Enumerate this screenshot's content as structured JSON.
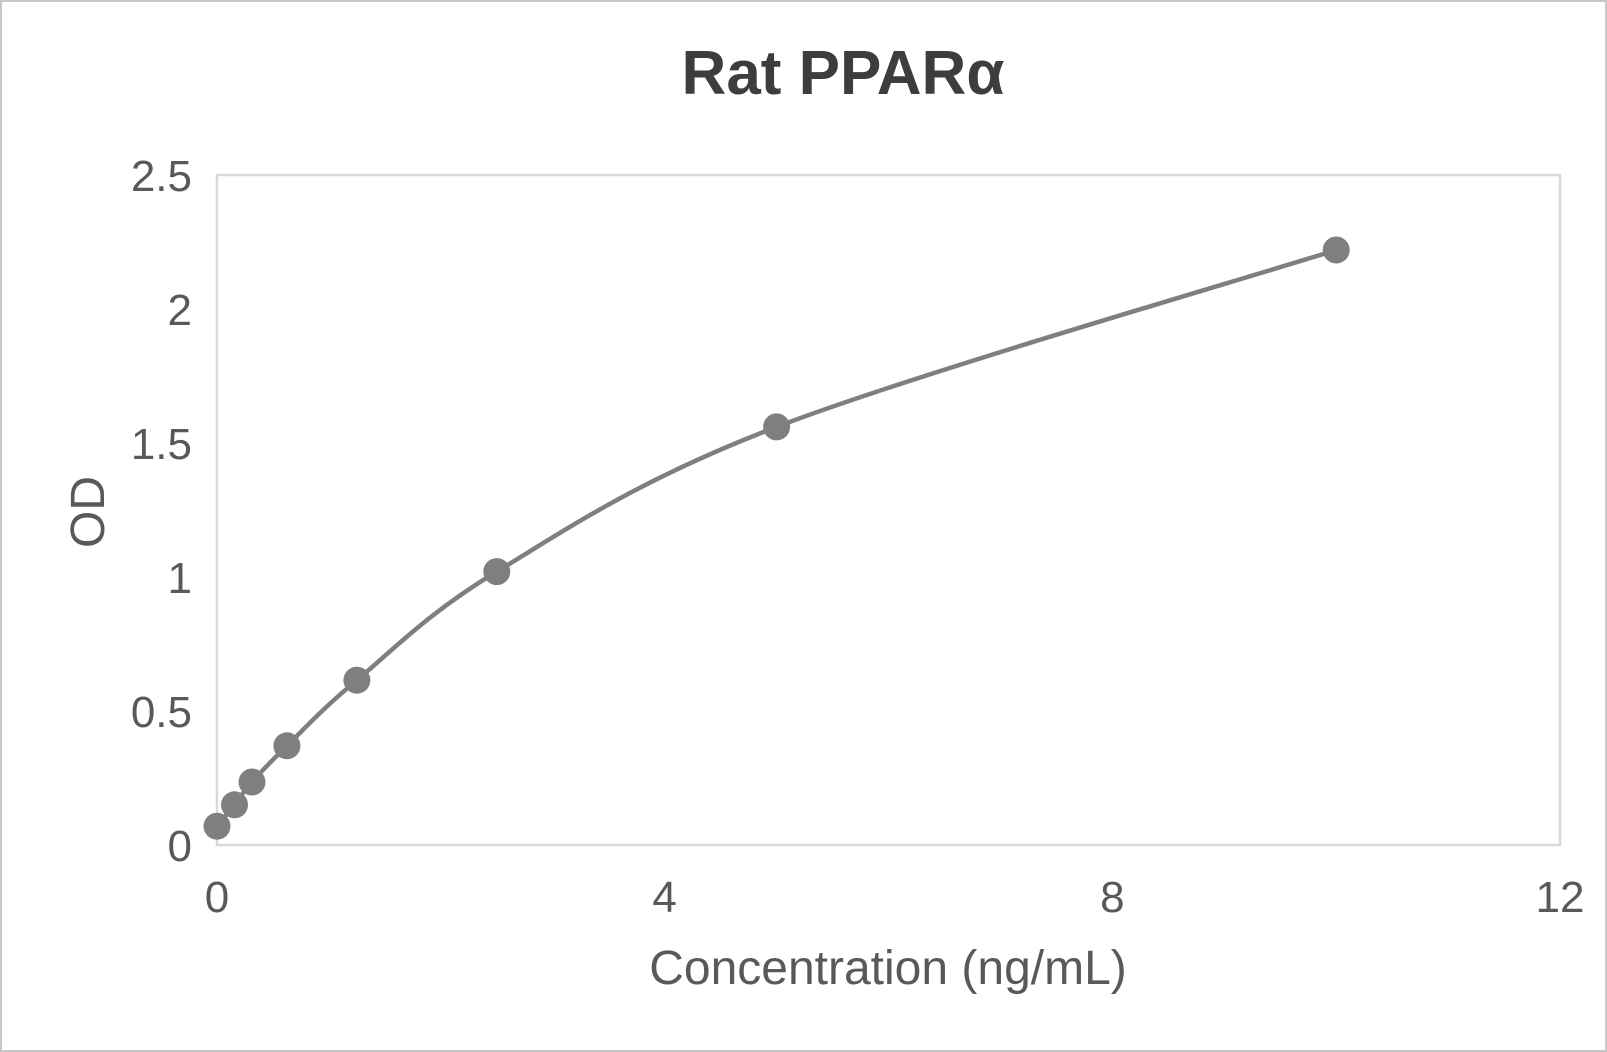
{
  "frame": {
    "background": "#ffffff",
    "border_color": "#c8c8c8"
  },
  "chart_data": {
    "type": "line",
    "title": "Rat PPARα",
    "xlabel": "Concentration (ng/mL)",
    "ylabel": "OD",
    "x": [
      0,
      0.156,
      0.3125,
      0.625,
      1.25,
      2.5,
      5,
      10
    ],
    "y": [
      0.07,
      0.15,
      0.235,
      0.37,
      0.615,
      1.02,
      1.56,
      2.22
    ],
    "xlim": [
      0,
      12
    ],
    "ylim": [
      0,
      2.5
    ],
    "x_ticks": [
      0,
      4,
      8,
      12
    ],
    "y_ticks": [
      0,
      0.5,
      1,
      1.5,
      2,
      2.5
    ],
    "grid": false,
    "legend": "none",
    "smooth_line": true,
    "marker_style": "circle",
    "colors": {
      "line": "#7f7f7f",
      "marker": "#7f7f7f",
      "plot_border": "#d9d9d9",
      "tick_text": "#595959",
      "axis_title_text": "#595959",
      "title_text": "#3d3d3d"
    }
  }
}
